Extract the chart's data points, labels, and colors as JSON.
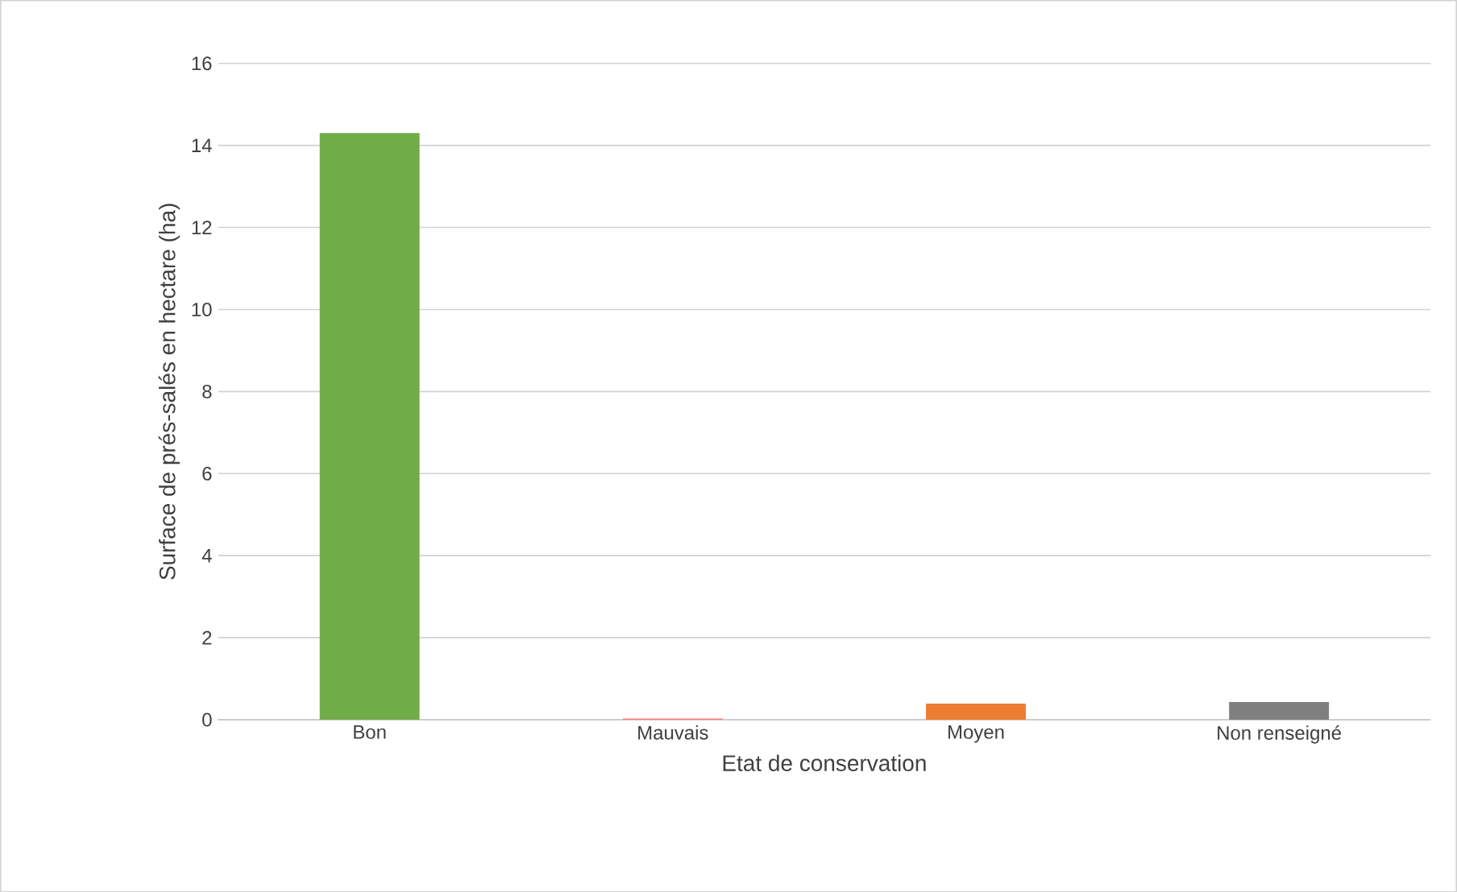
{
  "chart_data": {
    "type": "bar",
    "xlabel": "Etat de conservation",
    "ylabel": "Surface de prés-salés en hectare (ha)",
    "categories": [
      "Bon",
      "Mauvais",
      "Moyen",
      "Non renseigné"
    ],
    "values": [
      14.3,
      0.03,
      0.39,
      0.43
    ],
    "colors": [
      "#70ad47",
      "#ff7c80",
      "#ed7d31",
      "#7f7f7f"
    ],
    "ylim": [
      0,
      16
    ],
    "yticks": [
      0,
      2,
      4,
      6,
      8,
      10,
      12,
      14,
      16
    ],
    "grid": "y"
  }
}
